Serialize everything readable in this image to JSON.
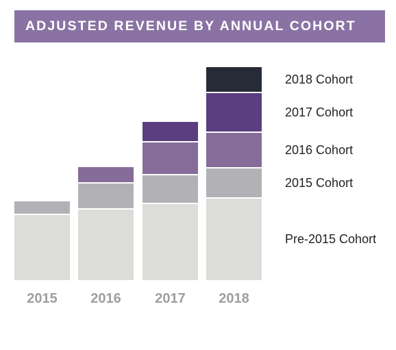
{
  "title": "ADJUSTED REVENUE BY ANNUAL COHORT",
  "chart_data": {
    "type": "bar",
    "stacked": true,
    "title": "ADJUSTED REVENUE BY ANNUAL COHORT",
    "categories": [
      "2015",
      "2016",
      "2017",
      "2018"
    ],
    "series": [
      {
        "name": "Pre-2015 Cohort",
        "color": "#dcdcd9",
        "values": [
          4.8,
          5.2,
          5.6,
          6.0
        ]
      },
      {
        "name": "2015 Cohort",
        "color": "#b2b1b6",
        "values": [
          1.0,
          1.9,
          2.1,
          2.2
        ]
      },
      {
        "name": "2016 Cohort",
        "color": "#866c99",
        "values": [
          0,
          1.2,
          2.4,
          2.6
        ]
      },
      {
        "name": "2017 Cohort",
        "color": "#5a3e80",
        "values": [
          0,
          0,
          1.5,
          2.9
        ]
      },
      {
        "name": "2018 Cohort",
        "color": "#272b38",
        "values": [
          0,
          0,
          0,
          1.9
        ]
      }
    ],
    "legend_position": "right",
    "grid": false,
    "ylim": [
      0,
      16
    ]
  }
}
